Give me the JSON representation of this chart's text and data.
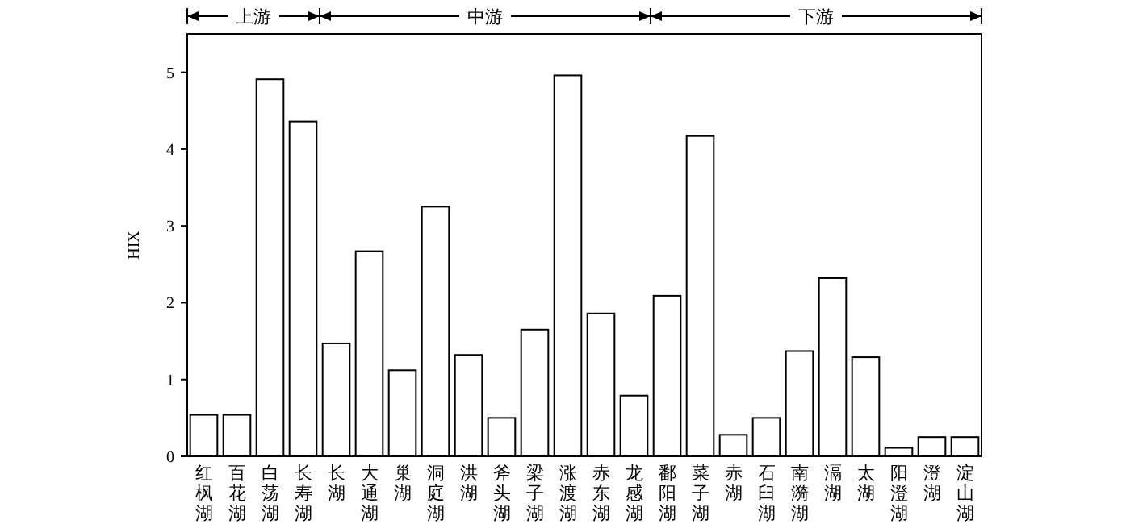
{
  "chart_data": {
    "type": "bar",
    "ylabel": "HIX",
    "categories": [
      "红枫湖",
      "百花湖",
      "白荡湖",
      "长寿湖",
      "长湖",
      "大通湖",
      "巢湖",
      "洞庭湖",
      "洪湖",
      "斧头湖",
      "梁子湖",
      "涨渡湖",
      "赤东湖",
      "龙感湖",
      "鄱阳湖",
      "菜子湖",
      "赤湖",
      "石臼湖",
      "南漪湖",
      "滆湖",
      "太湖",
      "阳澄湖",
      "澄湖",
      "淀山湖"
    ],
    "values": [
      0.54,
      0.54,
      4.91,
      4.36,
      1.47,
      2.67,
      1.12,
      3.25,
      1.32,
      0.5,
      1.65,
      4.96,
      1.86,
      0.79,
      2.09,
      4.17,
      0.28,
      0.5,
      1.37,
      2.32,
      1.29,
      0.11,
      0.25,
      0.25
    ],
    "color": "#ffffff",
    "ylim": [
      0,
      5.5
    ],
    "yticks": [
      0,
      1,
      2,
      3,
      4,
      5
    ],
    "annotations": [
      "上游",
      "中游",
      "下游"
    ],
    "grid": false
  }
}
